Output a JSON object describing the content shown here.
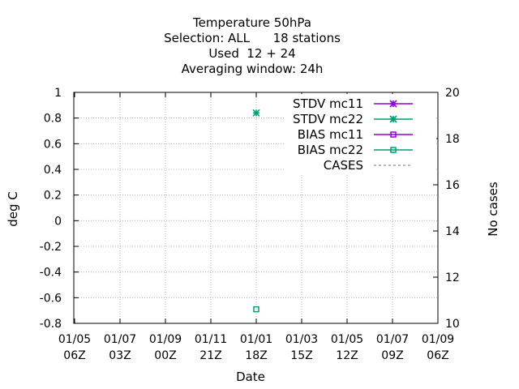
{
  "chart_data": {
    "type": "scatter",
    "title": [
      "Temperature 50hPa",
      "Selection: ALL      18 stations",
      "Used  12 + 24",
      "Averaging window: 24h"
    ],
    "xlabel": "Date",
    "ylabel": "deg C",
    "y2label": "No cases",
    "grid": true,
    "legend_position": "top-right",
    "ylim": [
      -0.8,
      1
    ],
    "y2lim": [
      10,
      20
    ],
    "yticks": [
      "1",
      "0.8",
      "0.6",
      "0.4",
      "0.2",
      "0",
      "-0.2",
      "-0.4",
      "-0.6",
      "-0.8"
    ],
    "y2ticks": [
      "20",
      "18",
      "16",
      "14",
      "12",
      "10"
    ],
    "xticks": [
      {
        "date": "01/05",
        "hour": "06Z"
      },
      {
        "date": "01/07",
        "hour": "03Z"
      },
      {
        "date": "01/09",
        "hour": "00Z"
      },
      {
        "date": "01/11",
        "hour": "21Z"
      },
      {
        "date": "01/01",
        "hour": "18Z"
      },
      {
        "date": "01/03",
        "hour": "15Z"
      },
      {
        "date": "01/05",
        "hour": "12Z"
      },
      {
        "date": "01/07",
        "hour": "09Z"
      },
      {
        "date": "01/09",
        "hour": "06Z"
      }
    ],
    "series": [
      {
        "name": "STDV mc11",
        "color": "#9400d3",
        "marker": "star",
        "points": []
      },
      {
        "name": "STDV mc22",
        "color": "#009e73",
        "marker": "star",
        "points": [
          {
            "x": "01/01 18Z",
            "y": 0.84
          }
        ]
      },
      {
        "name": "BIAS mc11",
        "color": "#9400d3",
        "marker": "square",
        "points": []
      },
      {
        "name": "BIAS mc22",
        "color": "#009e73",
        "marker": "square",
        "points": [
          {
            "x": "01/01 18Z",
            "y": -0.69
          }
        ]
      },
      {
        "name": "CASES",
        "color": "#909090",
        "marker": "dashed-line",
        "points": []
      }
    ]
  }
}
